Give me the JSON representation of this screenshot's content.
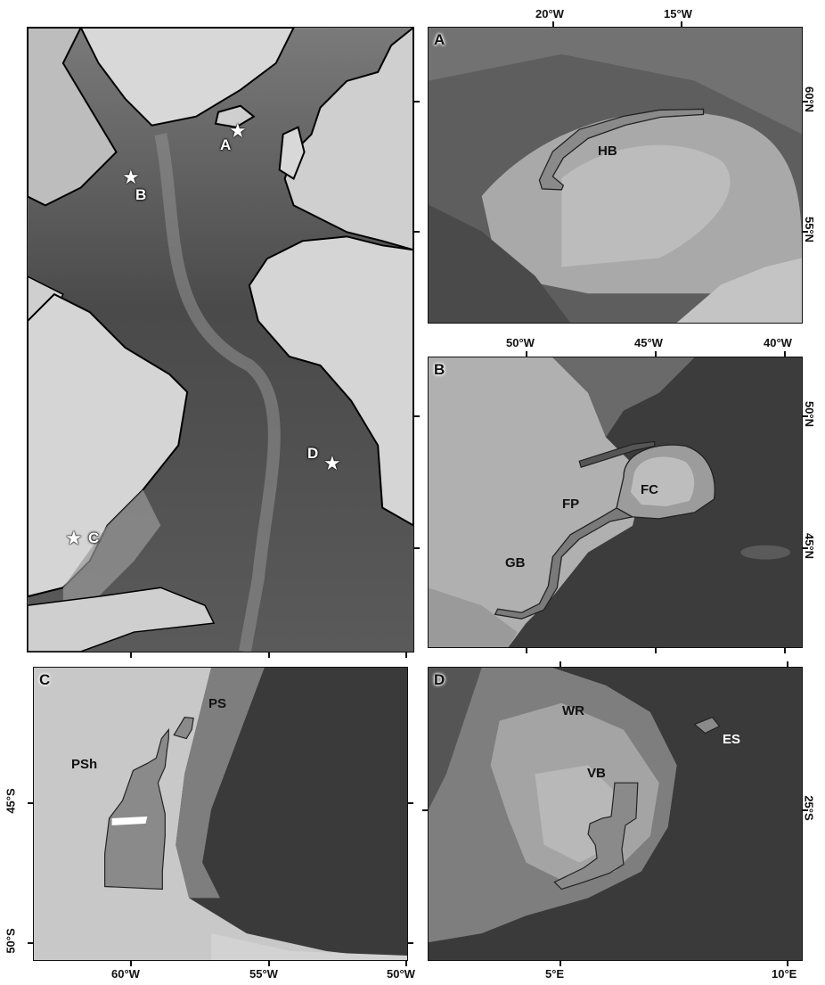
{
  "overview": {
    "sites": [
      {
        "id": "A",
        "label": "A"
      },
      {
        "id": "B",
        "label": "B"
      },
      {
        "id": "C",
        "label": "C"
      },
      {
        "id": "D",
        "label": "D"
      }
    ]
  },
  "panel_a": {
    "label": "A",
    "features": [
      {
        "id": "hb",
        "text": "HB"
      }
    ],
    "top_ticks": [
      "20°W",
      "15°W"
    ],
    "right_ticks": [
      "60°N",
      "55°N"
    ]
  },
  "panel_b": {
    "label": "B",
    "features": [
      {
        "id": "fc",
        "text": "FC"
      },
      {
        "id": "fp",
        "text": "FP"
      },
      {
        "id": "gb",
        "text": "GB"
      }
    ],
    "top_ticks": [
      "50°W",
      "45°W",
      "40°W"
    ],
    "right_ticks": [
      "50°N",
      "45°N"
    ]
  },
  "panel_c": {
    "label": "C",
    "features": [
      {
        "id": "ps",
        "text": "PS"
      },
      {
        "id": "psh",
        "text": "PSh"
      }
    ],
    "bottom_ticks": [
      "60°W",
      "55°W",
      "50°W"
    ],
    "left_ticks": [
      "45°S",
      "50°S"
    ]
  },
  "panel_d": {
    "label": "D",
    "features": [
      {
        "id": "wr",
        "text": "WR"
      },
      {
        "id": "vb",
        "text": "VB"
      },
      {
        "id": "es",
        "text": "ES"
      }
    ],
    "bottom_ticks": [
      "5°E",
      "10°E"
    ],
    "right_ticks": [
      "25°S"
    ]
  },
  "colors": {
    "ocean_deep": "#3a3a3a",
    "ocean_mid": "#6e6e6e",
    "shelf": "#a8a8a8",
    "land": "#d9d9d9",
    "coast": "#000000",
    "polygon_fill": "#8a8a8a"
  }
}
